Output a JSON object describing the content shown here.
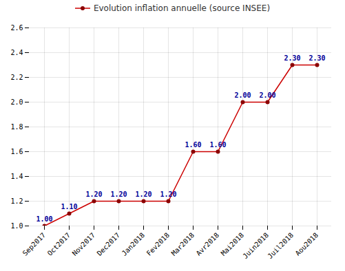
{
  "chart_data": {
    "type": "line",
    "categories": [
      "Sep2017",
      "Oct2017",
      "Nov2017",
      "Dec2017",
      "Jan2018",
      "Fev2018",
      "Mar2018",
      "Avr2018",
      "Mai2018",
      "Juin2018",
      "Juil2018",
      "Aou2018"
    ],
    "series": [
      {
        "name": "Evolution inflation annuelle (source INSEE)",
        "color": "#cc0000",
        "marker": "circle",
        "values": [
          1.0,
          1.1,
          1.2,
          1.2,
          1.2,
          1.2,
          1.6,
          1.6,
          2.0,
          2.0,
          2.3,
          2.3
        ],
        "value_labels": [
          "1.00",
          "1.10",
          "1.20",
          "1.20",
          "1.20",
          "1.20",
          "1.60",
          "1.60",
          "2.00",
          "2.00",
          "2.30",
          "2.30"
        ]
      }
    ],
    "ylim": [
      1.0,
      2.6
    ],
    "yticks": [
      {
        "value": 1.0,
        "label": "1.0"
      },
      1.2,
      1.4,
      1.6,
      1.8,
      {
        "value": 2.0,
        "label": "2.0"
      },
      2.2,
      2.4,
      2.6
    ],
    "grid": true,
    "legend": "top",
    "data_labels": true
  }
}
